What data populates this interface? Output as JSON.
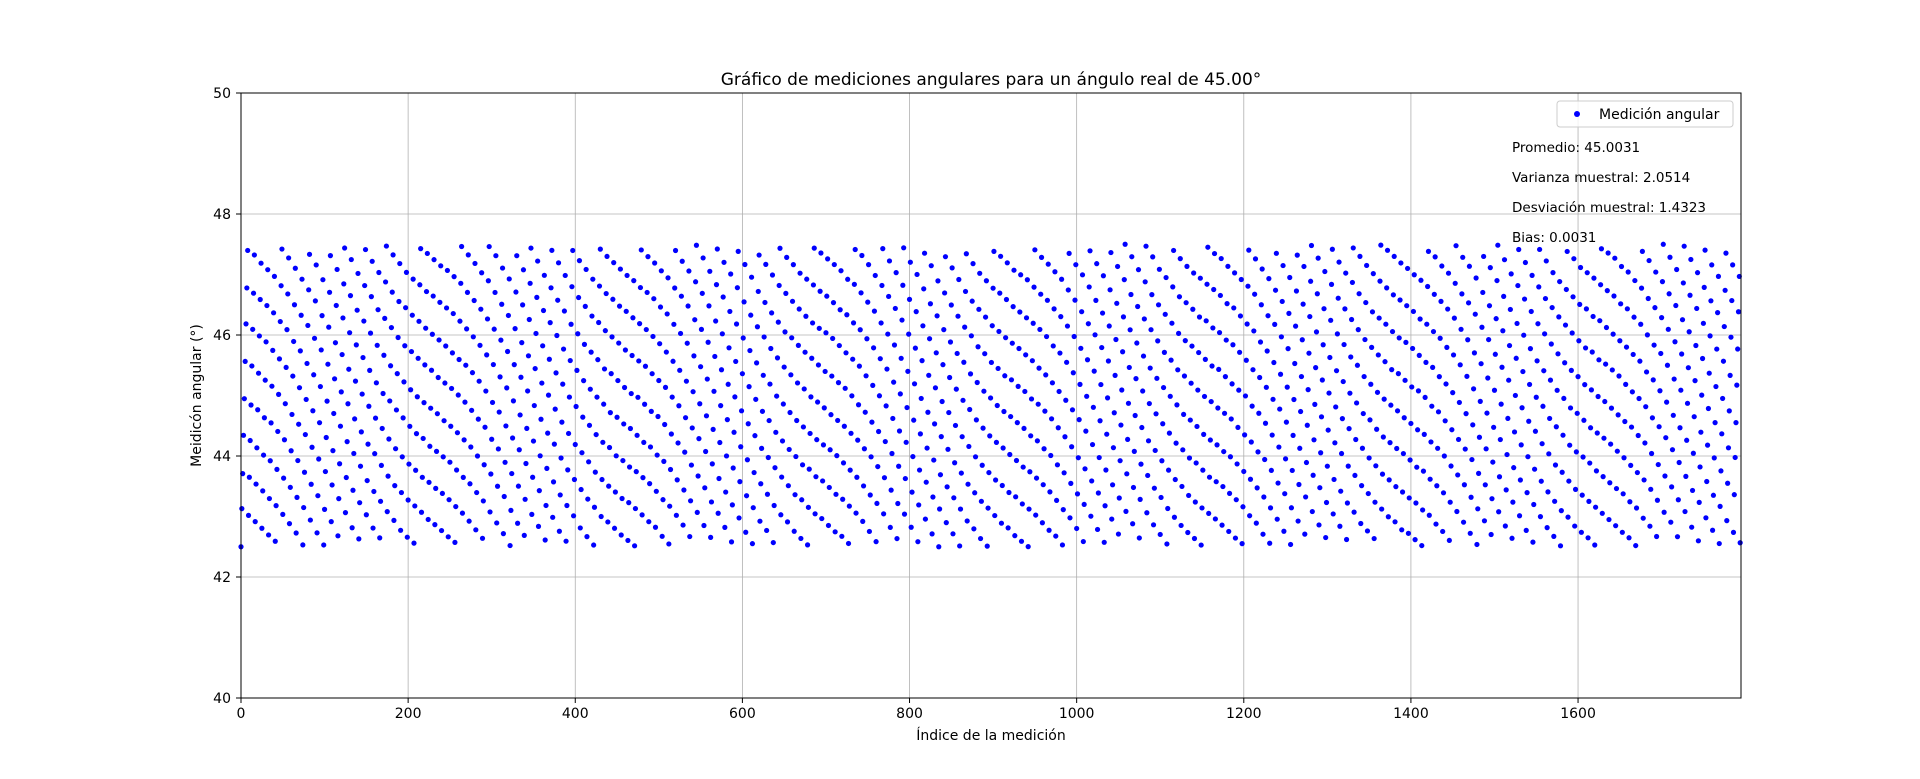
{
  "chart_data": {
    "type": "scatter",
    "title": "Gráfico de mediciones angulares para un ángulo real de 45.00°",
    "xlabel": "Índice de la medición",
    "ylabel": "Meidicón angular (°)",
    "xlim": [
      0,
      1795
    ],
    "ylim": [
      40,
      50
    ],
    "xticks": [
      0,
      200,
      400,
      600,
      800,
      1000,
      1200,
      1400,
      1600
    ],
    "yticks": [
      40,
      42,
      44,
      46,
      48,
      50
    ],
    "grid": true,
    "legend_position": "top-right",
    "series": [
      {
        "name": "Medición angular",
        "color": "#0000ff",
        "n_points": 1795,
        "y_min": 42.5,
        "y_max": 47.5,
        "pattern": "periodic sweep between 42.5 and 47.5 in steps of ~0.6°"
      }
    ],
    "stats": [
      "Promedio: 45.0031",
      "Varianza muestral: 2.0514",
      "Desviación muestral: 1.4323",
      "Bias: 0.0031"
    ]
  }
}
